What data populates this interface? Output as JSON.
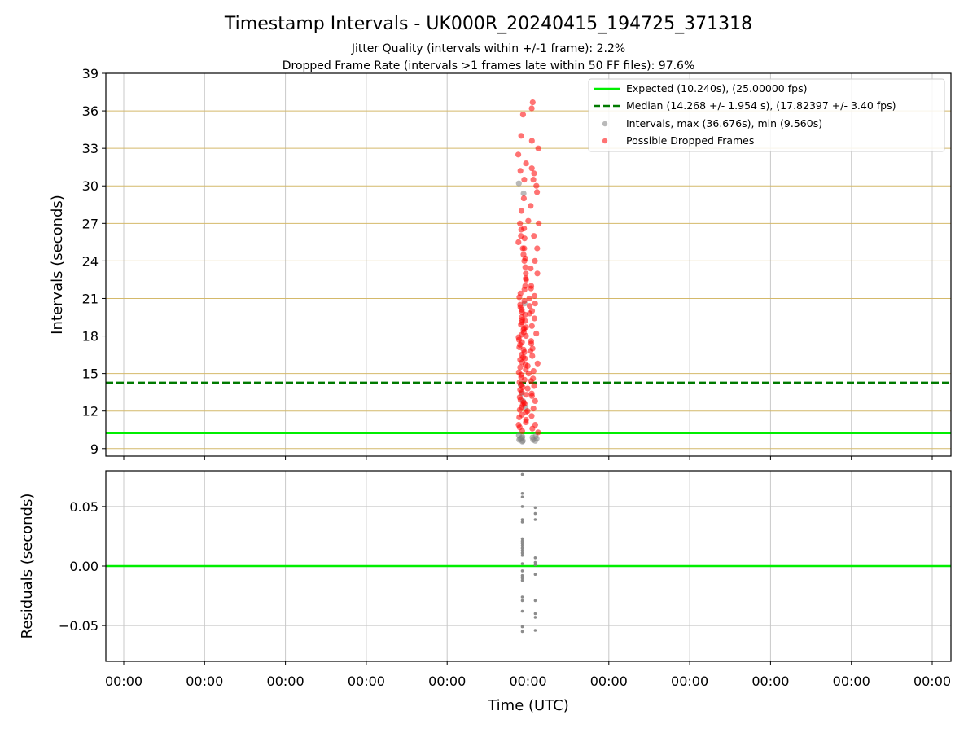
{
  "chart_data": [
    {
      "type": "scatter",
      "title": "Timestamp Intervals - UK000R_20240415_194725_371318",
      "subtitle_lines": [
        "Jitter Quality (intervals within +/-1 frame): 2.2%",
        "Dropped Frame Rate (intervals >1 frames late within 50 FF files): 97.6%"
      ],
      "xlabel": "",
      "ylabel": "Intervals (seconds)",
      "x_tick_labels": [
        "00:00",
        "00:00",
        "00:00",
        "00:00",
        "00:00",
        "00:00",
        "00:00",
        "00:00",
        "00:00",
        "00:00",
        "00:00"
      ],
      "ylim": [
        8.4,
        39
      ],
      "yticks": [
        9,
        12,
        15,
        18,
        21,
        24,
        27,
        30,
        33,
        36,
        39
      ],
      "grid": true,
      "legend_position": "top-right",
      "reference_lines": [
        {
          "name": "Expected (10.240s), (25.00000 fps)",
          "value": 10.24,
          "style": "solid",
          "color": "#00ee00"
        },
        {
          "name": "Median (14.268 +/- 1.954 s), (17.82397 +/- 3.40 fps)",
          "value": 14.268,
          "style": "dashed",
          "color": "#007a00"
        }
      ],
      "series": [
        {
          "name": "Intervals, max (36.676s), min (9.560s)",
          "color": "#808080",
          "clusters": [
            {
              "x": 4.93,
              "y_values": [
                9.56,
                9.62,
                9.7,
                9.78,
                9.85,
                9.95,
                10.05,
                12.3,
                12.8,
                13.4,
                14.1,
                20.6,
                29.4,
                30.2
              ]
            },
            {
              "x": 5.09,
              "y_values": [
                9.62,
                9.7,
                9.8,
                9.9,
                10.0
              ]
            }
          ]
        },
        {
          "name": "Possible Dropped Frames",
          "color": "#ff0000",
          "clusters": [
            {
              "x": 4.93,
              "y_values": [
                10.4,
                10.7,
                10.9,
                11.1,
                11.3,
                11.5,
                11.7,
                11.9,
                12.1,
                12.3,
                12.5,
                12.7,
                12.9,
                13.1,
                13.3,
                13.5,
                13.7,
                13.9,
                14.1,
                14.3,
                14.5,
                14.7,
                14.9,
                15.1,
                15.3,
                15.5,
                15.7,
                15.9,
                16.1,
                16.3,
                16.5,
                16.7,
                16.9,
                17.1,
                17.3,
                17.5,
                17.7,
                17.9,
                18.1,
                18.3,
                18.5,
                18.7,
                18.9,
                19.1,
                19.3,
                19.5,
                19.7,
                19.9,
                20.1,
                20.3,
                20.5,
                20.8,
                21.1,
                21.4,
                21.7,
                22.0,
                22.5,
                23.0,
                23.5,
                24.0,
                24.5,
                25.0,
                25.5,
                26.0,
                26.5,
                27.0,
                28.0,
                29.0,
                30.5,
                31.2,
                31.8,
                32.5,
                34.0,
                35.7
              ]
            },
            {
              "x": 5.0,
              "y_values": [
                12.0,
                12.6,
                13.2,
                13.8,
                14.4,
                15.0,
                15.6,
                16.2,
                16.8,
                17.4,
                18.0,
                18.6,
                19.2,
                19.8,
                20.4,
                21.0,
                21.8,
                22.6,
                23.4,
                24.2,
                25.0,
                25.8,
                26.6,
                27.2,
                28.4
              ]
            },
            {
              "x": 5.09,
              "y_values": [
                10.3,
                10.6,
                10.9,
                11.6,
                12.2,
                12.8,
                13.4,
                14.0,
                14.6,
                15.2,
                15.8,
                16.4,
                17.0,
                17.6,
                18.2,
                18.8,
                19.4,
                20.0,
                20.6,
                21.2,
                22.0,
                23.0,
                24.0,
                25.0,
                26.0,
                27.0,
                29.5,
                30.0,
                30.5,
                31.0,
                31.4,
                33.0,
                33.6,
                36.2,
                36.68
              ]
            }
          ]
        }
      ]
    },
    {
      "type": "scatter",
      "xlabel": "Time (UTC)",
      "ylabel": "Residuals (seconds)",
      "x_tick_labels": [
        "00:00",
        "00:00",
        "00:00",
        "00:00",
        "00:00",
        "00:00",
        "00:00",
        "00:00",
        "00:00",
        "00:00",
        "00:00"
      ],
      "ylim": [
        -0.08,
        0.08
      ],
      "yticks": [
        -0.05,
        0.0,
        0.05
      ],
      "ytick_labels": [
        "−0.05",
        "0.00",
        "0.05"
      ],
      "grid": true,
      "reference_lines": [
        {
          "value": 0.0,
          "style": "solid",
          "color": "#00ee00"
        }
      ],
      "series": [
        {
          "color": "#808080",
          "clusters": [
            {
              "x": 4.93,
              "y_values": [
                0.077,
                0.061,
                0.058,
                0.05,
                0.039,
                0.037,
                0.023,
                0.021,
                0.019,
                0.017,
                0.015,
                0.013,
                0.011,
                0.009,
                0.002,
                -0.004,
                -0.008,
                -0.01,
                -0.012,
                -0.026,
                -0.029,
                -0.038,
                -0.051,
                -0.055
              ]
            },
            {
              "x": 5.09,
              "y_values": [
                0.049,
                0.044,
                0.039,
                0.007,
                0.003,
                0.001,
                -0.007,
                -0.029,
                -0.04,
                -0.043,
                -0.054
              ]
            }
          ]
        }
      ]
    }
  ]
}
